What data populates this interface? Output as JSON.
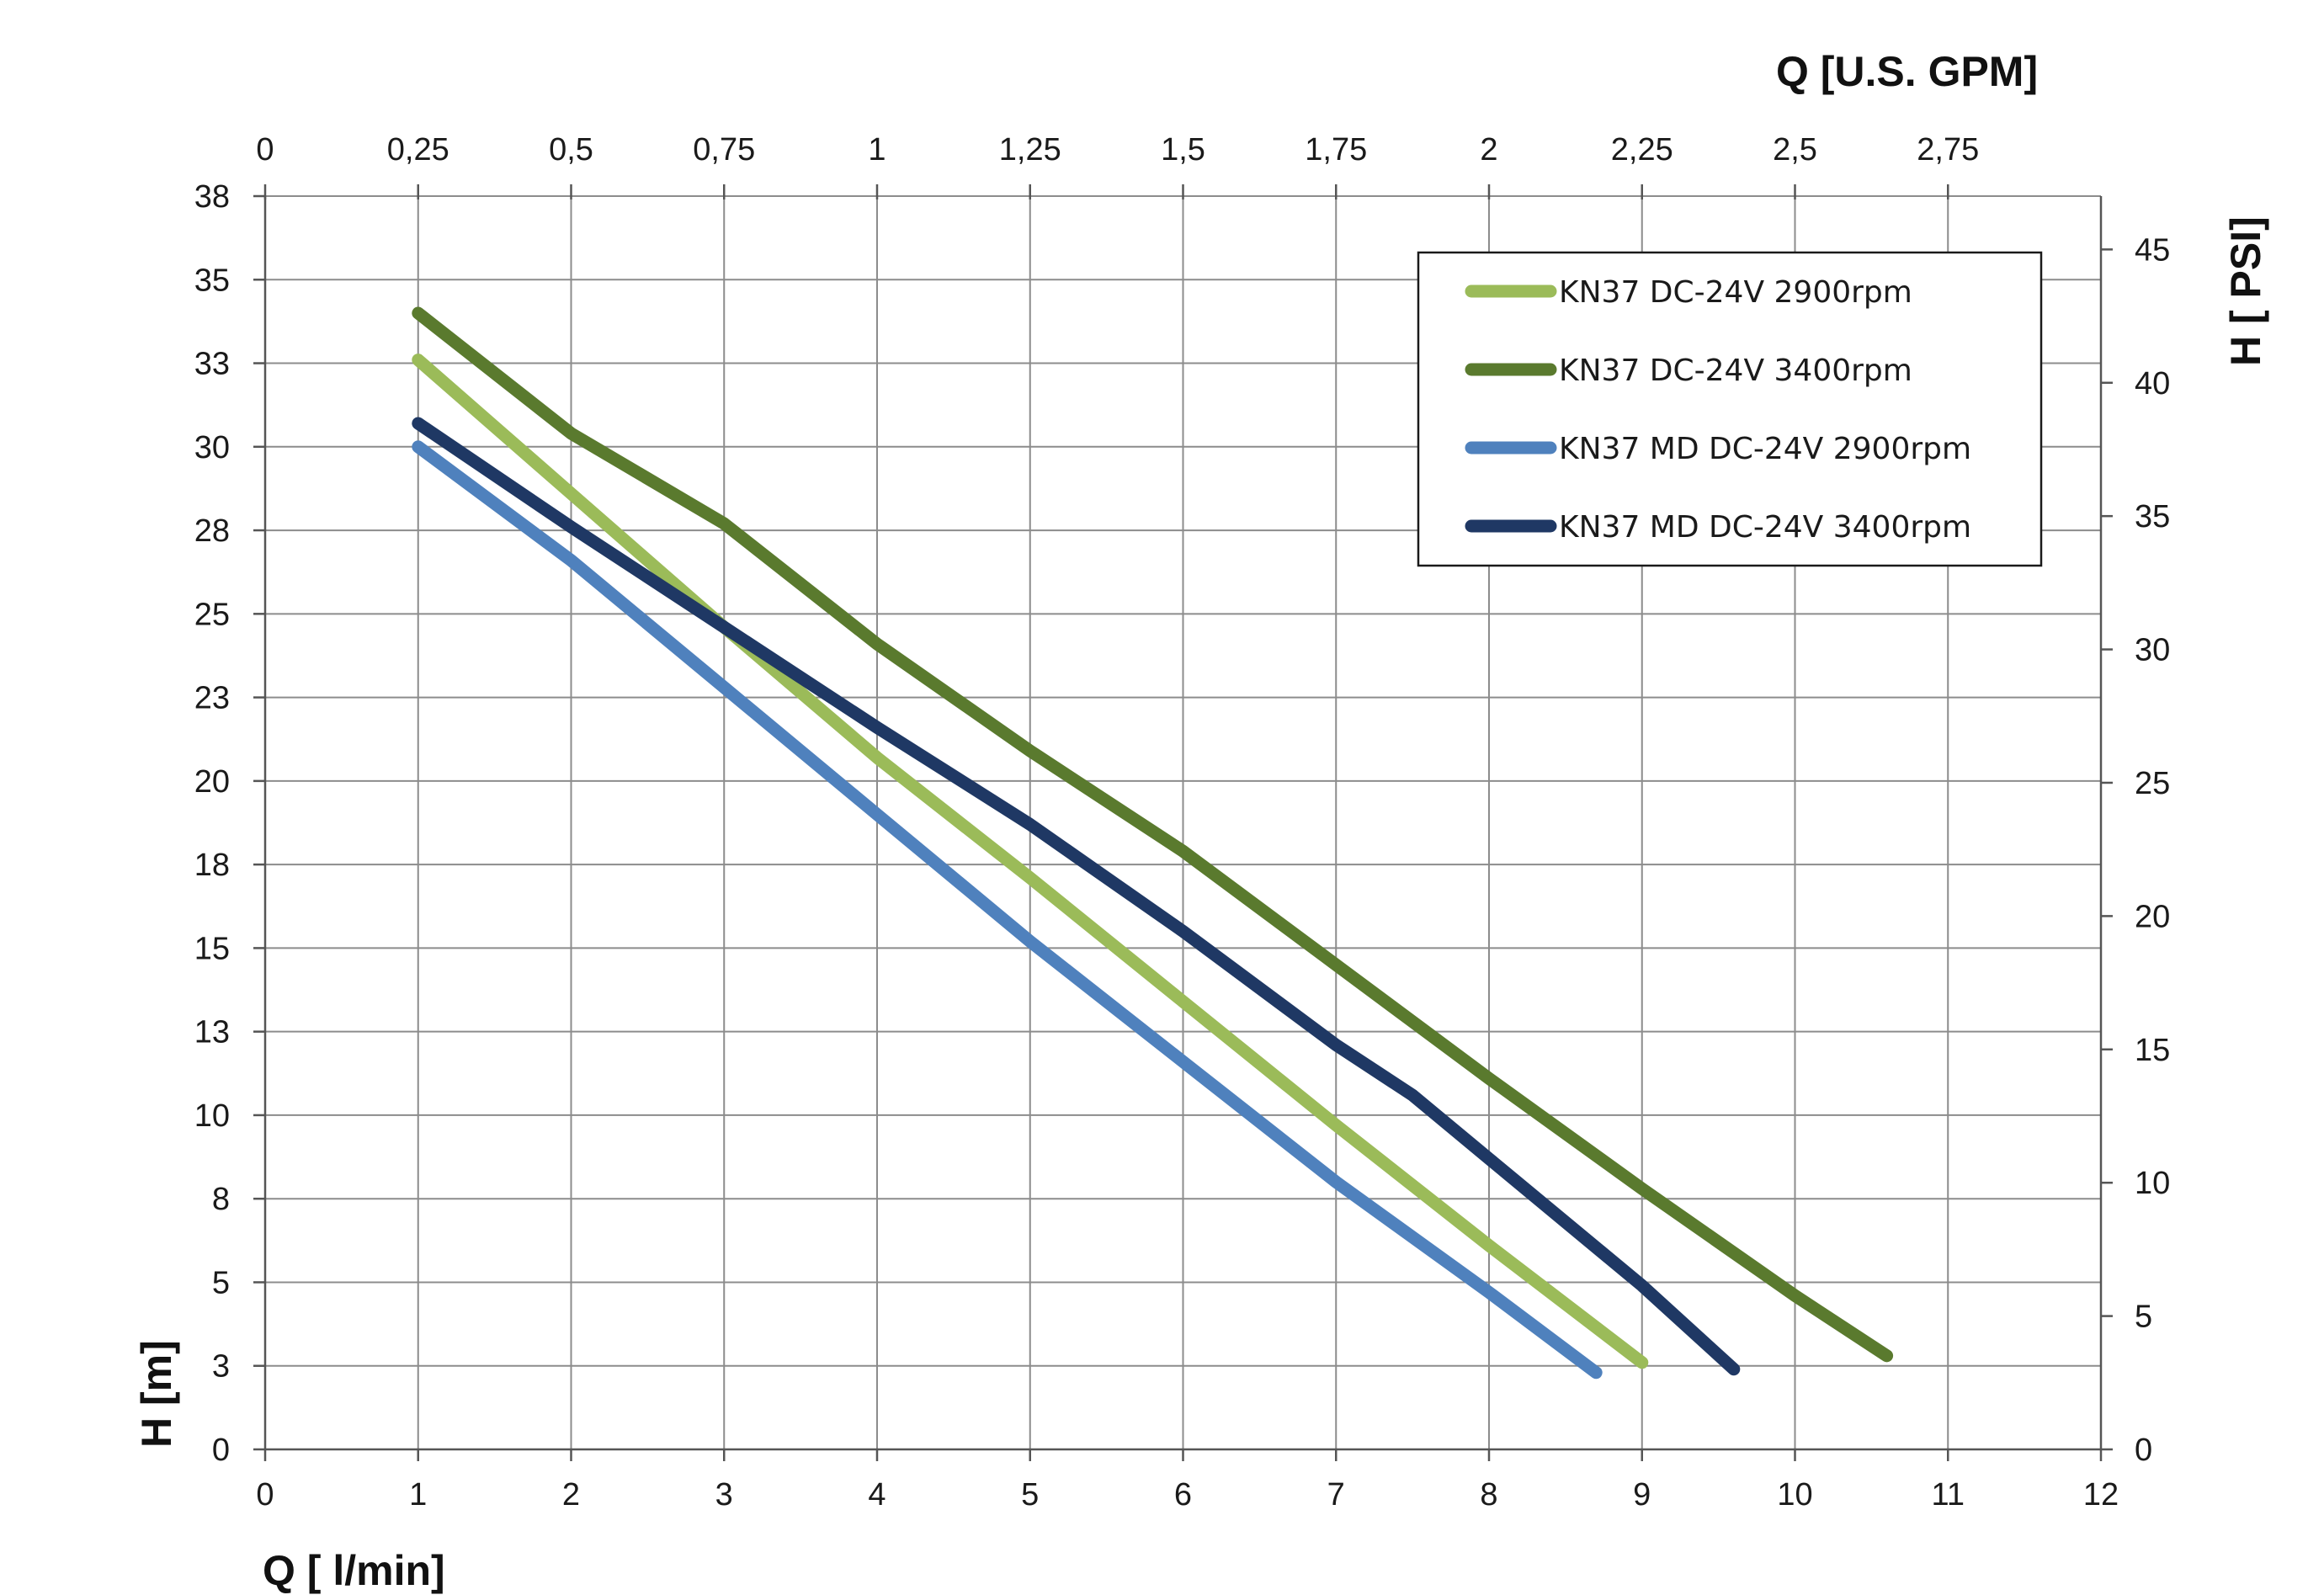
{
  "chart_data": {
    "type": "line",
    "title": "",
    "xlabel": "Q [ l/min]",
    "ylabel": "H [m]",
    "x2label": "Q  [U.S. GPM]",
    "y2label": "H [ PSI]",
    "xlim": [
      0,
      12
    ],
    "ylim": [
      0,
      37.5
    ],
    "x2lim": [
      0,
      3
    ],
    "y2lim": [
      0,
      47
    ],
    "x_ticks": [
      0,
      1,
      2,
      3,
      4,
      5,
      6,
      7,
      8,
      9,
      10,
      11,
      12
    ],
    "x_tick_labels": [
      "0",
      "1",
      "2",
      "3",
      "4",
      "5",
      "6",
      "7",
      "8",
      "9",
      "10",
      "11",
      "12"
    ],
    "y_ticks": [
      0,
      2.5,
      5,
      7.5,
      10,
      12.5,
      15,
      17.5,
      20,
      22.5,
      25,
      27.5,
      30,
      32.5,
      35,
      37.5
    ],
    "y_tick_labels": [
      "0",
      "3",
      "5",
      "8",
      "10",
      "13",
      "15",
      "18",
      "20",
      "23",
      "25",
      "28",
      "30",
      "33",
      "35",
      "38"
    ],
    "x2_ticks": [
      0,
      0.25,
      0.5,
      0.75,
      1,
      1.25,
      1.5,
      1.75,
      2,
      2.25,
      2.5,
      2.75
    ],
    "x2_tick_labels": [
      "0",
      "0,25",
      "0,5",
      "0,75",
      "1",
      "1,25",
      "1,5",
      "1,75",
      "2",
      "2,25",
      "2,5",
      "2,75"
    ],
    "y2_ticks": [
      0,
      5,
      10,
      15,
      20,
      25,
      30,
      35,
      40,
      45
    ],
    "y2_tick_labels": [
      "0",
      "5",
      "10",
      "15",
      "20",
      "25",
      "30",
      "35",
      "40",
      "45"
    ],
    "grid": true,
    "legend_position": "top-right",
    "series": [
      {
        "name": "KN37 DC-24V 2900rpm",
        "color": "#9bbb59",
        "points": [
          [
            1,
            32.6
          ],
          [
            2,
            28.6
          ],
          [
            3,
            24.6
          ],
          [
            4,
            20.7
          ],
          [
            5,
            17.1
          ],
          [
            6,
            13.4
          ],
          [
            7,
            9.7
          ],
          [
            8,
            6.1
          ],
          [
            9,
            2.6
          ]
        ]
      },
      {
        "name": "KN37 DC-24V 3400rpm",
        "color": "#5a7a2e",
        "points": [
          [
            1,
            34.0
          ],
          [
            2,
            30.4
          ],
          [
            3,
            27.7
          ],
          [
            4,
            24.1
          ],
          [
            5,
            20.9
          ],
          [
            6,
            17.9
          ],
          [
            7,
            14.5
          ],
          [
            8,
            11.1
          ],
          [
            9,
            7.8
          ],
          [
            10,
            4.6
          ],
          [
            10.6,
            2.8
          ]
        ]
      },
      {
        "name": "KN37 MD DC-24V 2900rpm",
        "color": "#4f81bd",
        "points": [
          [
            1,
            30.0
          ],
          [
            2,
            26.6
          ],
          [
            3,
            22.8
          ],
          [
            4,
            19.0
          ],
          [
            5,
            15.2
          ],
          [
            6,
            11.6
          ],
          [
            7,
            8.0
          ],
          [
            8,
            4.7
          ],
          [
            8.7,
            2.3
          ]
        ]
      },
      {
        "name": "KN37 MD DC-24V 3400rpm",
        "color": "#1f3864",
        "points": [
          [
            1,
            30.7
          ],
          [
            2,
            27.6
          ],
          [
            3,
            24.6
          ],
          [
            4,
            21.6
          ],
          [
            5,
            18.7
          ],
          [
            6,
            15.5
          ],
          [
            7,
            12.1
          ],
          [
            7.5,
            10.6
          ],
          [
            8,
            8.7
          ],
          [
            9,
            4.9
          ],
          [
            9.6,
            2.4
          ]
        ]
      }
    ]
  }
}
